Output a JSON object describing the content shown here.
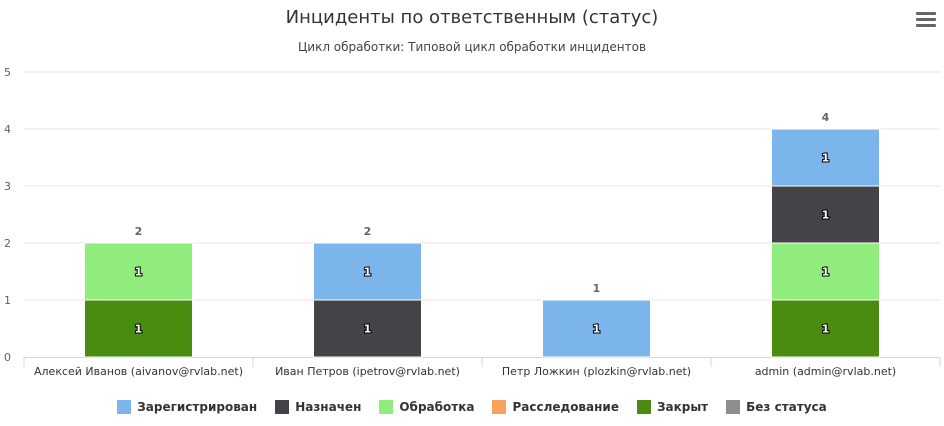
{
  "chart_data": {
    "type": "bar",
    "stacked": true,
    "title": "Инциденты по ответственным (статус)",
    "subtitle": "Цикл обработки: Типовой цикл обработки инцидентов",
    "categories": [
      "Алексей Иванов (aivanov@rvlab.net)",
      "Иван Петров (ipetrov@rvlab.net)",
      "Петр Ложкин (plozkin@rvlab.net)",
      "admin (admin@rvlab.net)"
    ],
    "series": [
      {
        "name": "Зарегистрирован",
        "color": "#7cb5ec",
        "values": [
          0,
          1,
          1,
          1
        ]
      },
      {
        "name": "Назначен",
        "color": "#434348",
        "values": [
          0,
          1,
          0,
          1
        ]
      },
      {
        "name": "Обработка",
        "color": "#90ed7d",
        "values": [
          1,
          0,
          0,
          1
        ]
      },
      {
        "name": "Расследование",
        "color": "#f7a35c",
        "values": [
          0,
          0,
          0,
          0
        ]
      },
      {
        "name": "Закрыт",
        "color": "#4a8c0f",
        "values": [
          1,
          0,
          0,
          1
        ]
      },
      {
        "name": "Без статуса",
        "color": "#8e8e8e",
        "values": [
          0,
          0,
          0,
          0
        ]
      }
    ],
    "totals": [
      2,
      2,
      1,
      4
    ],
    "ylim": [
      0,
      5
    ],
    "yticks": [
      0,
      1,
      2,
      3,
      4,
      5
    ],
    "grid": true,
    "legend": "bottom-center"
  },
  "menu_icon": "hamburger-menu-icon"
}
